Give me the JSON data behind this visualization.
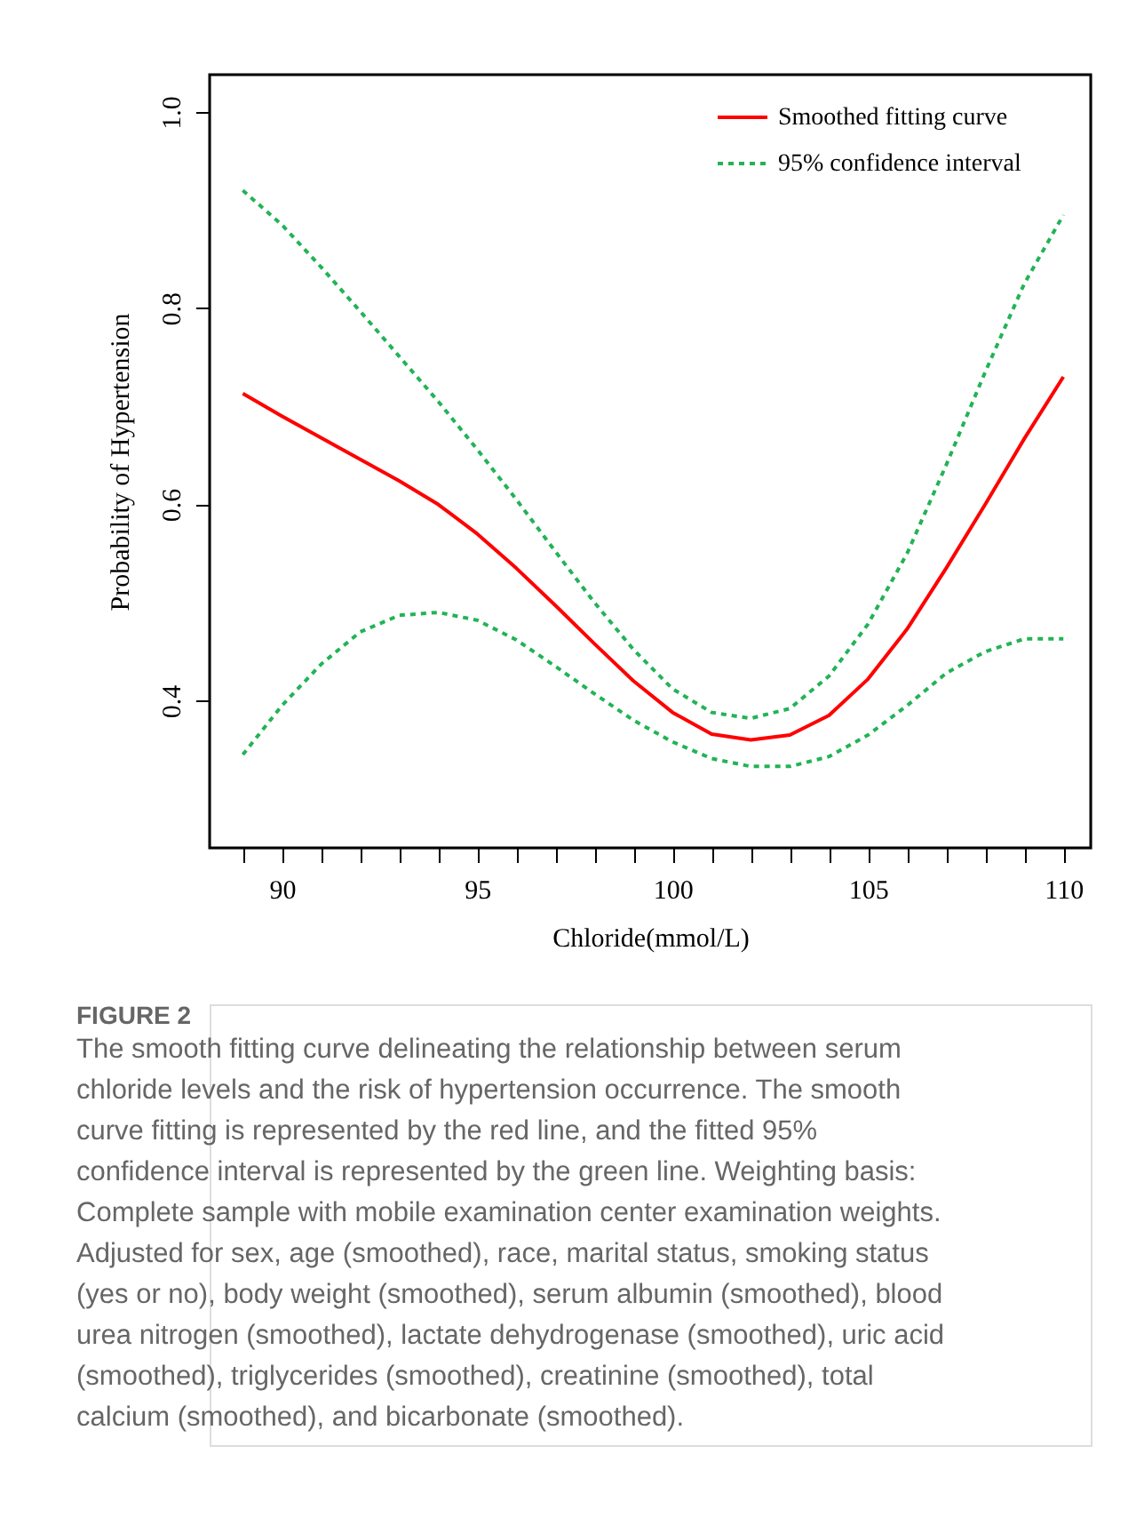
{
  "chart_data": {
    "type": "line",
    "xlabel": "Chloride(mmol/L)",
    "ylabel": "Probability of  Hypertension",
    "x": [
      89,
      90,
      91,
      92,
      93,
      94,
      95,
      96,
      97,
      98,
      99,
      100,
      101,
      102,
      103,
      104,
      105,
      106,
      107,
      108,
      109,
      110
    ],
    "series": [
      {
        "name": "Smoothed fitting curve",
        "color": "#ff0000",
        "line_style": "solid",
        "values": [
          0.713,
          0.69,
          0.668,
          0.646,
          0.624,
          0.6,
          0.57,
          0.535,
          0.497,
          0.458,
          0.42,
          0.388,
          0.366,
          0.36,
          0.365,
          0.385,
          0.422,
          0.473,
          0.535,
          0.6,
          0.667,
          0.73
        ]
      },
      {
        "name": "95% confidence interval",
        "color": "#22b356",
        "line_style": "dashed",
        "values": [
          0.92,
          0.885,
          0.842,
          0.797,
          0.751,
          0.705,
          0.656,
          0.605,
          0.552,
          0.5,
          0.452,
          0.412,
          0.388,
          0.382,
          0.392,
          0.425,
          0.478,
          0.55,
          0.64,
          0.735,
          0.825,
          0.895
        ]
      },
      {
        "color": "#22b356",
        "line_style": "dashed",
        "values": [
          0.345,
          0.395,
          0.437,
          0.47,
          0.487,
          0.49,
          0.482,
          0.462,
          0.435,
          0.407,
          0.38,
          0.358,
          0.341,
          0.333,
          0.333,
          0.343,
          0.365,
          0.395,
          0.428,
          0.45,
          0.463,
          0.463
        ]
      }
    ],
    "xlim": [
      88.15,
      110.7
    ],
    "xticks": [
      {
        "value": 89,
        "label": null
      },
      90,
      {
        "value": 91,
        "label": null
      },
      {
        "value": 92,
        "label": null
      },
      {
        "value": 93,
        "label": null
      },
      {
        "value": 94,
        "label": null
      },
      95,
      {
        "value": 96,
        "label": null
      },
      {
        "value": 97,
        "label": null
      },
      {
        "value": 98,
        "label": null
      },
      {
        "value": 99,
        "label": null
      },
      100,
      {
        "value": 101,
        "label": null
      },
      {
        "value": 102,
        "label": null
      },
      {
        "value": 103,
        "label": null
      },
      {
        "value": 104,
        "label": null
      },
      105,
      {
        "value": 106,
        "label": null
      },
      {
        "value": 107,
        "label": null
      },
      {
        "value": 108,
        "label": null
      },
      {
        "value": 109,
        "label": null
      },
      110
    ],
    "ylim": [
      0.25,
      1.038
    ],
    "yticks": [
      {
        "value": 0.4,
        "label": "0.4"
      },
      {
        "value": 0.6,
        "label": "0.6"
      },
      {
        "value": 0.8,
        "label": "0.8"
      },
      {
        "value": 1.0,
        "label": "1.0"
      }
    ],
    "grid": false,
    "legend": "top right",
    "annotations": [
      "FIGURE 2",
      "The smooth fitting curve delineating the relationship between serum chloride levels and the risk of hypertension occurrence. The smooth curve fitting is represented by the red line, and the fitted 95% confidence interval is represented by the green line. Weighting basis: Complete sample with mobile examination center examination weights. Adjusted for sex, age (smoothed), race, marital status, smoking status (yes or no), body weight (smoothed), serum albumin (smoothed), blood urea nitrogen (smoothed), lactate dehydrogenase (smoothed), uric acid (smoothed), triglycerides (smoothed), creatinine (smoothed), total calcium (smoothed), and bicarbonate (smoothed)."
    ]
  }
}
